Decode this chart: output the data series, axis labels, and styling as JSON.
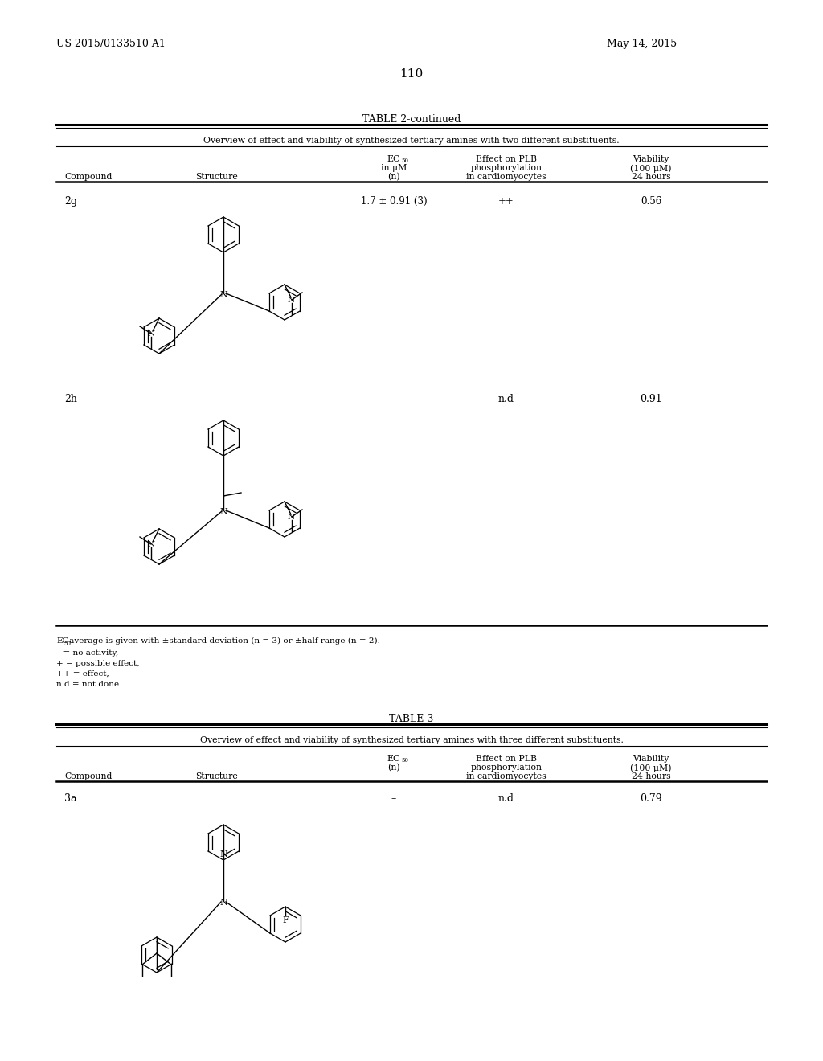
{
  "page_number": "110",
  "top_left": "US 2015/0133510 A1",
  "top_right": "May 14, 2015",
  "table2_title": "TABLE 2-continued",
  "table2_subtitle": "Overview of effect and viability of synthesized tertiary amines with two different substituents.",
  "table3_title": "TABLE 3",
  "table3_subtitle": "Overview of effect and viability of synthesized tertiary amines with three different substituents.",
  "t2_row2g": {
    "compound": "2g",
    "ec50": "1.7 ± 0.91 (3)",
    "effect": "++",
    "viability": "0.56"
  },
  "t2_row2h": {
    "compound": "2h",
    "ec50": "–",
    "effect": "n.d",
    "viability": "0.91"
  },
  "footnotes": [
    "EC50 average is given with ±standard deviation (n = 3) or ±half range (n = 2).",
    "– = no activity,",
    "+ = possible effect,",
    "++ = effect,",
    "n.d = not done"
  ],
  "t3_row3a": {
    "compound": "3a",
    "ec50": "–",
    "effect": "n.d",
    "viability": "0.79"
  }
}
